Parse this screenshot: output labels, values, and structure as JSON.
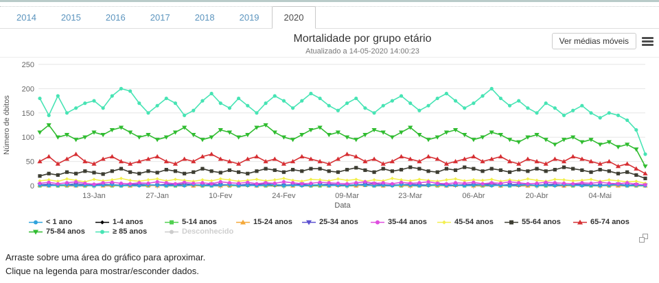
{
  "tabs": {
    "items": [
      {
        "label": "2014",
        "active": false
      },
      {
        "label": "2015",
        "active": false
      },
      {
        "label": "2016",
        "active": false
      },
      {
        "label": "2017",
        "active": false
      },
      {
        "label": "2018",
        "active": false
      },
      {
        "label": "2019",
        "active": false
      },
      {
        "label": "2020",
        "active": true
      }
    ]
  },
  "header": {
    "title": "Mortalidade por grupo etário",
    "subtitle": "Atualizado a 14-05-2020 14:00:23",
    "moving_avg_button_label": "Ver médias móveis",
    "menu_icon": "hamburger-icon",
    "copy_icon": "copy-icon"
  },
  "footer": {
    "line1": "Arraste sobre uma área do gráfico para aproximar.",
    "line2": "Clique na legenda para mostrar/esconder dados."
  },
  "chart_data": {
    "type": "line",
    "title": "Mortalidade por grupo etário",
    "subtitle": "Atualizado a 14-05-2020 14:00:23",
    "xlabel": "Data",
    "ylabel": "Número de óbitos",
    "ylim": [
      0,
      250
    ],
    "yticks": [
      0,
      50,
      100,
      150,
      200,
      250
    ],
    "grid": "horizontal",
    "legend_position": "bottom",
    "x_domain_days": [
      0,
      134
    ],
    "x_start_date": "01-Jan-2020",
    "x_end_date": "14-Mai-2020",
    "sample_step_days": 2,
    "x_tick_days": [
      12,
      26,
      40,
      54,
      68,
      82,
      96,
      110,
      124
    ],
    "x_tick_labels": [
      "13-Jan",
      "27-Jan",
      "10-Fev",
      "24-Fev",
      "09-Mar",
      "23-Mar",
      "06-Abr",
      "20-Abr",
      "04-Mai"
    ],
    "series": [
      {
        "name": "< 1 ano",
        "color": "#2fa3dc",
        "marker": "circle",
        "visible": true,
        "values": [
          1,
          0,
          1,
          2,
          0,
          1,
          0,
          1,
          2,
          0,
          1,
          0,
          2,
          1,
          0,
          1,
          0,
          2,
          1,
          0,
          1,
          2,
          0,
          1,
          0,
          1,
          2,
          0,
          1,
          0,
          1,
          2,
          0,
          1,
          0,
          2,
          1,
          0,
          1,
          0,
          2,
          1,
          0,
          1,
          2,
          0,
          1,
          0,
          1,
          2,
          0,
          1,
          0,
          1,
          2,
          0,
          1,
          0,
          2,
          1,
          0,
          1,
          0,
          1,
          2,
          0,
          1,
          0
        ]
      },
      {
        "name": "1-4 anos",
        "color": "#000000",
        "marker": "diamond",
        "visible": true,
        "values": [
          0,
          0,
          1,
          0,
          0,
          0,
          1,
          0,
          0,
          1,
          0,
          0,
          0,
          1,
          0,
          0,
          0,
          1,
          0,
          0,
          0,
          1,
          0,
          0,
          1,
          0,
          0,
          0,
          1,
          0,
          0,
          0,
          1,
          0,
          0,
          0,
          1,
          0,
          0,
          0,
          1,
          0,
          0,
          0,
          1,
          0,
          0,
          1,
          0,
          0,
          0,
          1,
          0,
          0,
          0,
          1,
          0,
          0,
          0,
          1,
          0,
          0,
          0,
          1,
          0,
          0,
          0,
          0
        ]
      },
      {
        "name": "5-14 anos",
        "color": "#50d050",
        "marker": "square",
        "visible": true,
        "values": [
          0,
          1,
          0,
          0,
          1,
          0,
          0,
          1,
          0,
          0,
          0,
          1,
          0,
          1,
          0,
          0,
          1,
          0,
          0,
          0,
          1,
          0,
          0,
          1,
          0,
          0,
          1,
          0,
          0,
          1,
          0,
          0,
          0,
          1,
          0,
          0,
          1,
          0,
          0,
          1,
          0,
          0,
          0,
          1,
          0,
          0,
          1,
          0,
          0,
          0,
          1,
          0,
          0,
          1,
          0,
          0,
          0,
          1,
          0,
          0,
          1,
          0,
          0,
          0,
          1,
          0,
          0,
          0
        ]
      },
      {
        "name": "15-24 anos",
        "color": "#f4a83a",
        "marker": "triangle-up",
        "visible": true,
        "values": [
          1,
          0,
          2,
          1,
          0,
          1,
          2,
          0,
          1,
          1,
          0,
          2,
          1,
          0,
          1,
          2,
          1,
          0,
          1,
          2,
          0,
          1,
          1,
          2,
          0,
          1,
          2,
          1,
          0,
          1,
          1,
          2,
          0,
          1,
          2,
          0,
          1,
          1,
          0,
          2,
          1,
          0,
          1,
          2,
          1,
          0,
          1,
          2,
          0,
          1,
          1,
          0,
          2,
          1,
          0,
          1,
          2,
          1,
          0,
          1,
          1,
          2,
          0,
          1,
          0,
          1,
          1,
          0
        ]
      },
      {
        "name": "25-34 anos",
        "color": "#5a4fd0",
        "marker": "triangle-down",
        "visible": true,
        "values": [
          2,
          3,
          1,
          2,
          4,
          2,
          1,
          3,
          2,
          1,
          2,
          3,
          2,
          1,
          3,
          2,
          4,
          2,
          1,
          3,
          2,
          2,
          1,
          3,
          2,
          4,
          2,
          1,
          2,
          3,
          1,
          2,
          3,
          2,
          1,
          2,
          3,
          4,
          2,
          1,
          2,
          3,
          2,
          1,
          3,
          2,
          1,
          2,
          3,
          2,
          4,
          1,
          2,
          3,
          2,
          1,
          2,
          3,
          1,
          2,
          3,
          2,
          1,
          2,
          3,
          1,
          2,
          1
        ]
      },
      {
        "name": "35-44 anos",
        "color": "#df4ddf",
        "marker": "circle",
        "visible": true,
        "values": [
          5,
          7,
          4,
          6,
          8,
          5,
          3,
          6,
          7,
          5,
          4,
          6,
          5,
          8,
          6,
          4,
          7,
          5,
          6,
          4,
          8,
          6,
          5,
          7,
          4,
          6,
          5,
          8,
          6,
          4,
          5,
          7,
          6,
          5,
          4,
          6,
          8,
          5,
          6,
          4,
          7,
          5,
          6,
          8,
          5,
          4,
          6,
          5,
          7,
          4,
          6,
          5,
          8,
          6,
          4,
          5,
          7,
          6,
          5,
          4,
          6,
          5,
          7,
          5,
          4,
          6,
          3,
          2
        ]
      },
      {
        "name": "45-54 anos",
        "color": "#f3ef4e",
        "marker": "diamond",
        "visible": true,
        "values": [
          10,
          12,
          9,
          14,
          11,
          8,
          13,
          10,
          12,
          15,
          11,
          9,
          12,
          14,
          10,
          13,
          11,
          9,
          12,
          10,
          14,
          12,
          9,
          11,
          13,
          10,
          12,
          15,
          11,
          9,
          13,
          12,
          10,
          14,
          11,
          13,
          9,
          12,
          10,
          15,
          12,
          10,
          13,
          11,
          9,
          12,
          14,
          10,
          12,
          11,
          13,
          9,
          12,
          10,
          14,
          11,
          9,
          13,
          12,
          10,
          11,
          13,
          9,
          12,
          10,
          8,
          9,
          5
        ]
      },
      {
        "name": "55-64 anos",
        "color": "#3d3d32",
        "marker": "square",
        "visible": true,
        "values": [
          20,
          25,
          22,
          28,
          25,
          30,
          27,
          24,
          30,
          35,
          28,
          25,
          30,
          27,
          33,
          30,
          25,
          28,
          35,
          30,
          27,
          32,
          28,
          25,
          30,
          35,
          32,
          28,
          33,
          30,
          35,
          35,
          30,
          28,
          33,
          37,
          32,
          28,
          35,
          30,
          33,
          38,
          35,
          30,
          28,
          35,
          32,
          38,
          35,
          30,
          35,
          32,
          28,
          33,
          30,
          35,
          30,
          33,
          38,
          35,
          32,
          28,
          33,
          30,
          25,
          28,
          22,
          15
        ]
      },
      {
        "name": "65-74 anos",
        "color": "#d62f33",
        "marker": "triangle-up",
        "visible": true,
        "values": [
          50,
          60,
          45,
          55,
          65,
          50,
          45,
          55,
          60,
          50,
          45,
          50,
          55,
          60,
          50,
          45,
          55,
          50,
          60,
          65,
          55,
          50,
          45,
          55,
          60,
          50,
          55,
          45,
          50,
          60,
          55,
          50,
          45,
          55,
          65,
          60,
          50,
          55,
          45,
          50,
          60,
          55,
          50,
          60,
          55,
          45,
          50,
          55,
          60,
          50,
          55,
          60,
          50,
          45,
          55,
          50,
          45,
          55,
          50,
          60,
          55,
          50,
          45,
          50,
          40,
          45,
          35,
          25
        ]
      },
      {
        "name": "75-84 anos",
        "color": "#30bc30",
        "marker": "triangle-down",
        "visible": true,
        "values": [
          110,
          125,
          100,
          105,
          95,
          100,
          110,
          105,
          115,
          120,
          110,
          100,
          105,
          95,
          100,
          110,
          120,
          105,
          95,
          100,
          115,
          110,
          100,
          105,
          120,
          125,
          110,
          100,
          95,
          105,
          115,
          120,
          105,
          110,
          100,
          95,
          105,
          115,
          110,
          100,
          110,
          120,
          105,
          95,
          100,
          110,
          115,
          105,
          95,
          100,
          110,
          105,
          95,
          90,
          100,
          105,
          95,
          85,
          95,
          100,
          90,
          95,
          85,
          90,
          80,
          85,
          75,
          40
        ]
      },
      {
        "name": "≥ 85 anos",
        "color": "#47e4b4",
        "marker": "circle",
        "visible": true,
        "values": [
          180,
          145,
          185,
          150,
          160,
          170,
          175,
          160,
          185,
          200,
          195,
          170,
          150,
          165,
          180,
          170,
          145,
          155,
          175,
          190,
          170,
          160,
          180,
          165,
          150,
          170,
          185,
          175,
          160,
          175,
          190,
          180,
          165,
          155,
          170,
          180,
          160,
          150,
          165,
          175,
          185,
          170,
          155,
          165,
          180,
          190,
          175,
          160,
          170,
          185,
          200,
          180,
          165,
          175,
          160,
          150,
          170,
          160,
          145,
          155,
          165,
          150,
          140,
          150,
          145,
          135,
          115,
          65
        ]
      },
      {
        "name": "Desconhecido",
        "color": "#cccccc",
        "marker": "circle",
        "visible": false,
        "values": []
      }
    ]
  }
}
